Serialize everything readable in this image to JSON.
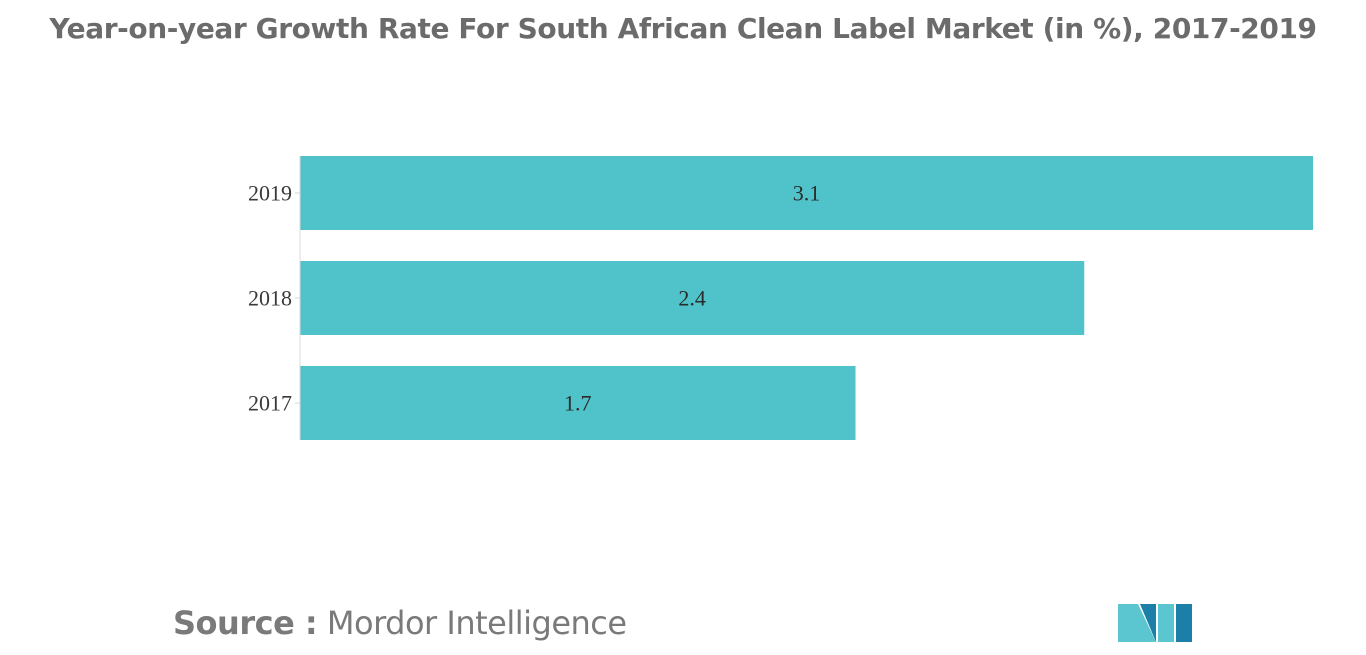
{
  "chart_data": {
    "type": "bar",
    "orientation": "horizontal",
    "title": "Year-on-year Growth Rate For South African Clean Label Market (in %), 2017-2019",
    "categories": [
      "2019",
      "2018",
      "2017"
    ],
    "values": [
      3.1,
      2.4,
      1.7
    ],
    "value_labels": [
      "3.1",
      "2.4",
      "1.7"
    ],
    "xlabel": "",
    "ylabel": "",
    "xlim": [
      0,
      3.1
    ],
    "grid": false,
    "legend": "none",
    "bar_color": "#4fc3c9"
  },
  "source": {
    "label": "Source :",
    "name": "Mordor Intelligence"
  },
  "logo": {
    "icon": "mordor-intelligence-logo-icon",
    "colors": [
      "#1b7fa8",
      "#5cc6d0"
    ]
  }
}
